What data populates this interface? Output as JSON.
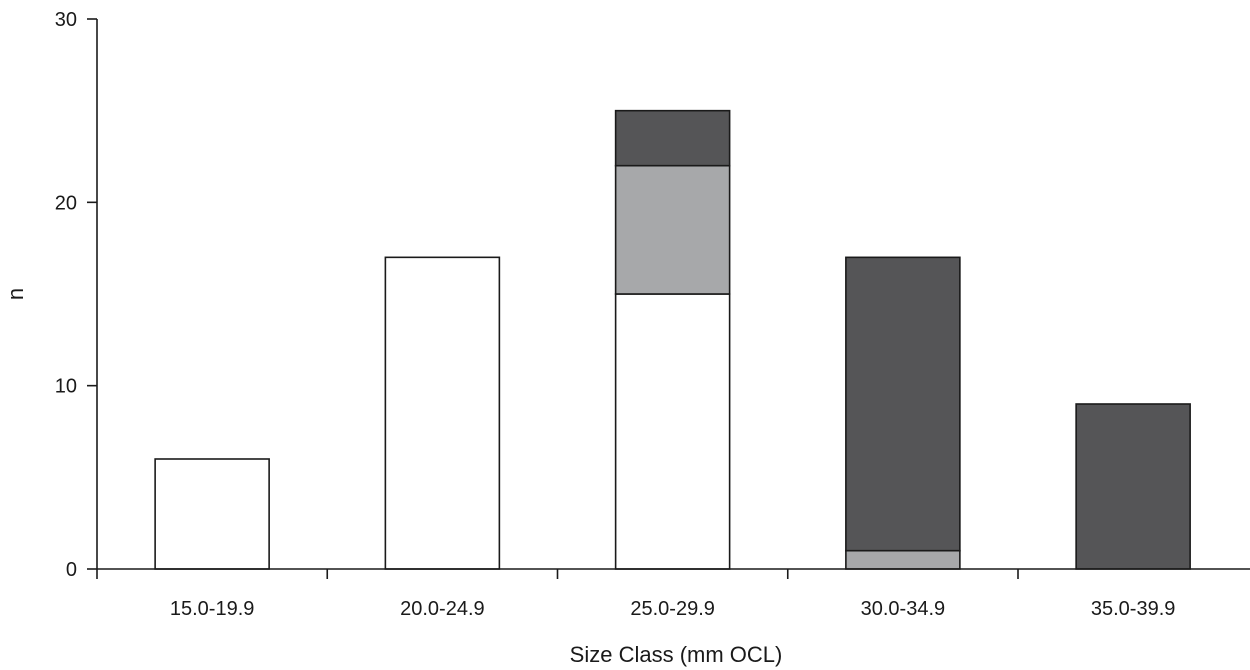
{
  "chart_data": {
    "type": "bar",
    "stacked": true,
    "title": "",
    "xlabel": "Size Class (mm OCL)",
    "ylabel": "n",
    "ylim": [
      0,
      30
    ],
    "yticks": [
      0,
      10,
      20,
      30
    ],
    "grid": false,
    "categories": [
      "15.0-19.9",
      "20.0-24.9",
      "25.0-29.9",
      "30.0-34.9",
      "35.0-39.9"
    ],
    "series": [
      {
        "values": [
          6,
          17,
          15,
          0,
          0
        ],
        "color": "#ffffff"
      },
      {
        "values": [
          0,
          0,
          7,
          1,
          0
        ],
        "color": "#a7a8aa"
      },
      {
        "values": [
          0,
          0,
          3,
          16,
          9
        ],
        "color": "#555557"
      }
    ]
  }
}
